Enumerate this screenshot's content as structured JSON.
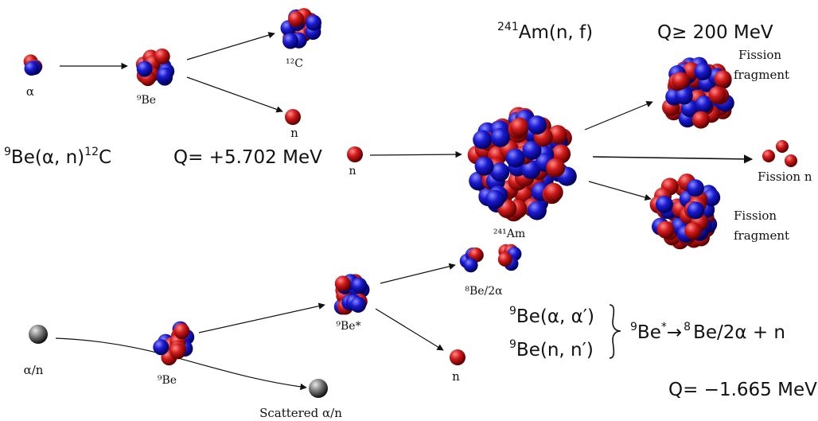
{
  "colors": {
    "proton": "#d11a1a",
    "neutron": "#1a1ad1",
    "neutral": "#666666",
    "arrow": "#111111"
  },
  "labels": {
    "alpha": "α",
    "be9_top": "⁹Be",
    "c12": "¹²C",
    "n_top": "n",
    "be9_reaction_base": "Be(α, n)",
    "be9_reaction_pre": "9",
    "be9_reaction_post": "12",
    "be9_reaction_c": "C",
    "q_be9": "Q= +5.702 MeV",
    "n_incoming": "n",
    "am_reaction_pre": "241",
    "am_reaction_main": "Am(n, f)",
    "q_fission": "Q≥ 200 MeV",
    "fission_fragment_top_1": "Fission",
    "fission_fragment_top_2": "fragment",
    "fission_n": "Fission n",
    "fission_fragment_bottom_1": "Fission",
    "fission_fragment_bottom_2": "fragment",
    "am241": "²⁴¹Am",
    "alpha_n": "α/n",
    "be9_bottom": "⁹Be",
    "be9_star": "⁹Be*",
    "be8": "⁸Be/2α",
    "n_bottom": "n",
    "scattered": "Scattered α/n",
    "inel_1_pre": "9",
    "inel_1_main": "Be(α, α′)",
    "inel_2_pre": "9",
    "inel_2_main": "Be(n, n′)",
    "decay_pre": "9",
    "decay_mid": "Be",
    "decay_star": "*",
    "decay_arrow": "→",
    "decay_pre2": "8",
    "decay_rest": "Be/2α + n",
    "q_inelastic": "Q= −1.665 MeV"
  }
}
